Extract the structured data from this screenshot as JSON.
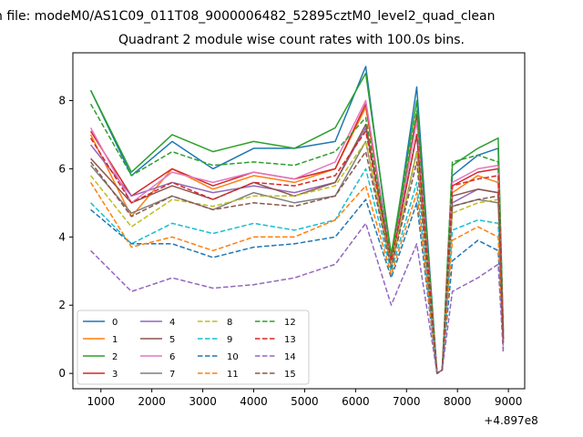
{
  "figure": {
    "suptitle": "n file: modeM0/AS1C09_011T08_9000006482_52895cztM0_level2_quad_clean",
    "title": "Quadrant 2 module wise count rates with 100.0s bins.",
    "offset_label": "+4.897e8"
  },
  "chart_data": {
    "type": "line",
    "title": "Quadrant 2 module wise count rates with 100.0s bins.",
    "xlabel": "",
    "ylabel": "",
    "x_offset": "+4.897e8",
    "xlim": [
      450,
      9320
    ],
    "ylim": [
      -0.45,
      9.4
    ],
    "xticks": [
      1000,
      2000,
      3000,
      4000,
      5000,
      6000,
      7000,
      8000,
      9000
    ],
    "yticks": [
      0,
      2,
      4,
      6,
      8
    ],
    "grid": false,
    "legend": {
      "placement": "lower-left",
      "columns": 4
    },
    "x": [
      800,
      1600,
      2400,
      3200,
      4000,
      4800,
      5600,
      6200,
      6700,
      7200,
      7600,
      7700,
      7900,
      8400,
      8800,
      8900
    ],
    "series": [
      {
        "name": "0",
        "style": "solid",
        "color": "#1f77b4",
        "values": [
          8.3,
          5.8,
          6.8,
          6.0,
          6.6,
          6.6,
          6.8,
          9.0,
          3.3,
          8.4,
          0.0,
          0.1,
          5.8,
          6.4,
          6.6,
          1.2
        ]
      },
      {
        "name": "1",
        "style": "solid",
        "color": "#ff7f0e",
        "values": [
          7.0,
          4.6,
          6.0,
          5.4,
          5.8,
          5.6,
          6.0,
          7.8,
          3.3,
          7.6,
          0.0,
          0.1,
          5.3,
          5.8,
          5.6,
          1.0
        ]
      },
      {
        "name": "2",
        "style": "solid",
        "color": "#2ca02c",
        "values": [
          8.3,
          5.9,
          7.0,
          6.5,
          6.8,
          6.6,
          7.2,
          8.8,
          3.5,
          8.0,
          0.0,
          0.1,
          6.1,
          6.6,
          6.9,
          1.3
        ]
      },
      {
        "name": "3",
        "style": "solid",
        "color": "#d62728",
        "values": [
          7.1,
          5.2,
          6.0,
          5.5,
          5.9,
          5.7,
          6.0,
          7.9,
          3.3,
          7.6,
          0.0,
          0.1,
          5.5,
          5.9,
          6.0,
          1.1
        ]
      },
      {
        "name": "4",
        "style": "solid",
        "color": "#9467bd",
        "values": [
          6.7,
          5.2,
          5.6,
          5.3,
          5.5,
          5.3,
          5.6,
          7.2,
          3.3,
          7.0,
          0.0,
          0.1,
          5.0,
          5.4,
          5.3,
          1.0
        ]
      },
      {
        "name": "5",
        "style": "solid",
        "color": "#8c564b",
        "values": [
          6.3,
          5.0,
          5.5,
          5.1,
          5.6,
          5.2,
          5.6,
          7.3,
          3.2,
          7.0,
          0.0,
          0.1,
          5.2,
          5.4,
          5.3,
          1.0
        ]
      },
      {
        "name": "6",
        "style": "solid",
        "color": "#e377c2",
        "values": [
          7.2,
          5.0,
          5.9,
          5.6,
          5.9,
          5.7,
          6.2,
          8.0,
          3.3,
          7.4,
          0.0,
          0.1,
          5.6,
          6.0,
          6.1,
          1.1
        ]
      },
      {
        "name": "7",
        "style": "solid",
        "color": "#7f7f7f",
        "values": [
          6.1,
          4.7,
          5.2,
          4.8,
          5.3,
          5.0,
          5.2,
          6.8,
          3.1,
          6.5,
          0.0,
          0.1,
          4.9,
          5.1,
          5.0,
          0.9
        ]
      },
      {
        "name": "8",
        "style": "dashed",
        "color": "#bcbd22",
        "values": [
          5.8,
          4.3,
          5.1,
          4.9,
          5.2,
          5.2,
          5.5,
          6.8,
          3.2,
          6.5,
          0.0,
          0.1,
          4.7,
          5.0,
          5.1,
          0.9
        ]
      },
      {
        "name": "9",
        "style": "dashed",
        "color": "#17becf",
        "values": [
          5.0,
          3.8,
          4.4,
          4.1,
          4.4,
          4.2,
          4.5,
          6.0,
          3.0,
          5.6,
          0.0,
          0.1,
          4.2,
          4.5,
          4.4,
          0.9
        ]
      },
      {
        "name": "10",
        "style": "dashed",
        "color": "#1f77b4",
        "values": [
          4.8,
          3.8,
          3.8,
          3.4,
          3.7,
          3.8,
          4.0,
          5.1,
          2.8,
          5.0,
          0.0,
          0.1,
          3.3,
          3.9,
          3.6,
          0.7
        ]
      },
      {
        "name": "11",
        "style": "dashed",
        "color": "#ff7f0e",
        "values": [
          5.6,
          3.7,
          4.0,
          3.6,
          4.0,
          4.0,
          4.5,
          5.5,
          2.9,
          5.3,
          0.0,
          0.1,
          3.9,
          4.3,
          4.0,
          0.8
        ]
      },
      {
        "name": "12",
        "style": "dashed",
        "color": "#2ca02c",
        "values": [
          7.9,
          5.8,
          6.5,
          6.1,
          6.2,
          6.1,
          6.5,
          7.5,
          3.4,
          7.7,
          0.0,
          0.1,
          6.2,
          6.4,
          6.2,
          1.2
        ]
      },
      {
        "name": "13",
        "style": "dashed",
        "color": "#d62728",
        "values": [
          6.9,
          5.0,
          5.6,
          5.1,
          5.6,
          5.5,
          5.8,
          7.1,
          3.3,
          7.0,
          0.0,
          0.1,
          5.5,
          5.7,
          5.8,
          1.0
        ]
      },
      {
        "name": "14",
        "style": "dashed",
        "color": "#9467bd",
        "values": [
          3.6,
          2.4,
          2.8,
          2.5,
          2.6,
          2.8,
          3.2,
          4.4,
          2.0,
          3.8,
          0.0,
          0.1,
          2.4,
          2.8,
          3.2,
          0.6
        ]
      },
      {
        "name": "15",
        "style": "dashed",
        "color": "#8c564b",
        "values": [
          6.2,
          4.6,
          5.2,
          4.8,
          5.0,
          4.9,
          5.2,
          6.5,
          3.1,
          6.2,
          0.0,
          0.1,
          4.9,
          5.1,
          5.2,
          0.9
        ]
      }
    ]
  }
}
